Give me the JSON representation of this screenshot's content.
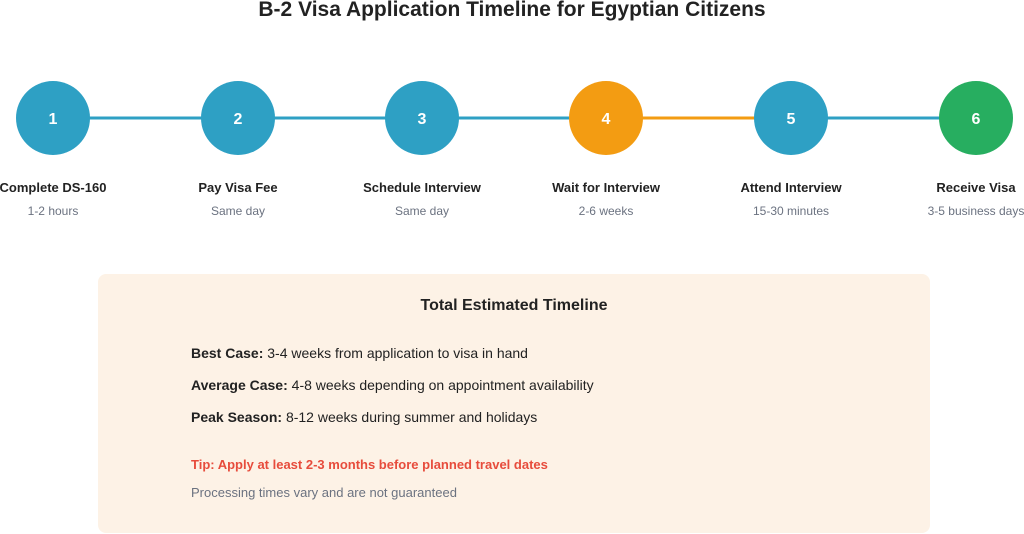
{
  "title": "B-2 Visa Application Timeline for Egyptian Citizens",
  "colors": {
    "blue": "#2ea0c4",
    "orange": "#f39c12",
    "green": "#27ae60",
    "tip": "#e74c3c",
    "box_bg": "#fdf2e6"
  },
  "steps": [
    {
      "number": "1",
      "label": "Complete DS-160",
      "duration": "1-2 hours",
      "color": "#2ea0c4"
    },
    {
      "number": "2",
      "label": "Pay Visa Fee",
      "duration": "Same day",
      "color": "#2ea0c4"
    },
    {
      "number": "3",
      "label": "Schedule Interview",
      "duration": "Same day",
      "color": "#2ea0c4"
    },
    {
      "number": "4",
      "label": "Wait for Interview",
      "duration": "2-6 weeks",
      "color": "#f39c12"
    },
    {
      "number": "5",
      "label": "Attend Interview",
      "duration": "15-30 minutes",
      "color": "#2ea0c4"
    },
    {
      "number": "6",
      "label": "Receive Visa",
      "duration": "3-5 business days",
      "color": "#27ae60"
    }
  ],
  "connector_colors": [
    "#2ea0c4",
    "#2ea0c4",
    "#2ea0c4",
    "#f39c12",
    "#2ea0c4"
  ],
  "summary": {
    "heading": "Total Estimated Timeline",
    "rows": [
      {
        "label": "Best Case:",
        "text": " 3-4 weeks from application to visa in hand"
      },
      {
        "label": "Average Case:",
        "text": " 4-8 weeks depending on appointment availability"
      },
      {
        "label": "Peak Season:",
        "text": " 8-12 weeks during summer and holidays"
      }
    ],
    "tip": "Tip: Apply at least 2-3 months before planned travel dates",
    "note": "Processing times vary and are not guaranteed"
  }
}
